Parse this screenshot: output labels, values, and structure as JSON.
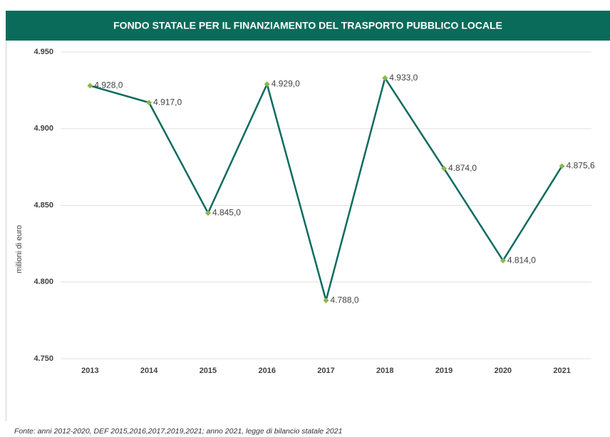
{
  "chart_data": {
    "type": "line",
    "title": "FONDO STATALE PER IL  FINANZIAMENTO DEL TRASPORTO PUBBLICO LOCALE",
    "y_label": "milioni di euro",
    "categories": [
      "2013",
      "2014",
      "2015",
      "2016",
      "2017",
      "2018",
      "2019",
      "2020",
      "2021"
    ],
    "series": [
      {
        "color": "#0d6b5f",
        "marker_color": "#8db54b",
        "values": [
          4928,
          4917,
          4845,
          4929,
          4788,
          4933,
          4874,
          4814,
          4875.6
        ],
        "value_labels": [
          "4.928,0",
          "4.917,0",
          "4.845,0",
          "4.929,0",
          "4.788,0",
          "4.933,0",
          "4.874,0",
          "4.814,0",
          "4.875,6"
        ]
      }
    ],
    "ylim": [
      4750,
      4950
    ],
    "yticks": [
      {
        "value": 4750,
        "label": "4.750"
      },
      {
        "value": 4800,
        "label": "4.800"
      },
      {
        "value": 4850,
        "label": "4.850"
      },
      {
        "value": 4900,
        "label": "4.900"
      },
      {
        "value": 4950,
        "label": "4.950"
      }
    ],
    "grid": true,
    "note": "Fonte: anni 2012-2020,  DEF 2015,2016,2017,2019,2021;  anno 2021, legge di bilancio statale 2021"
  }
}
